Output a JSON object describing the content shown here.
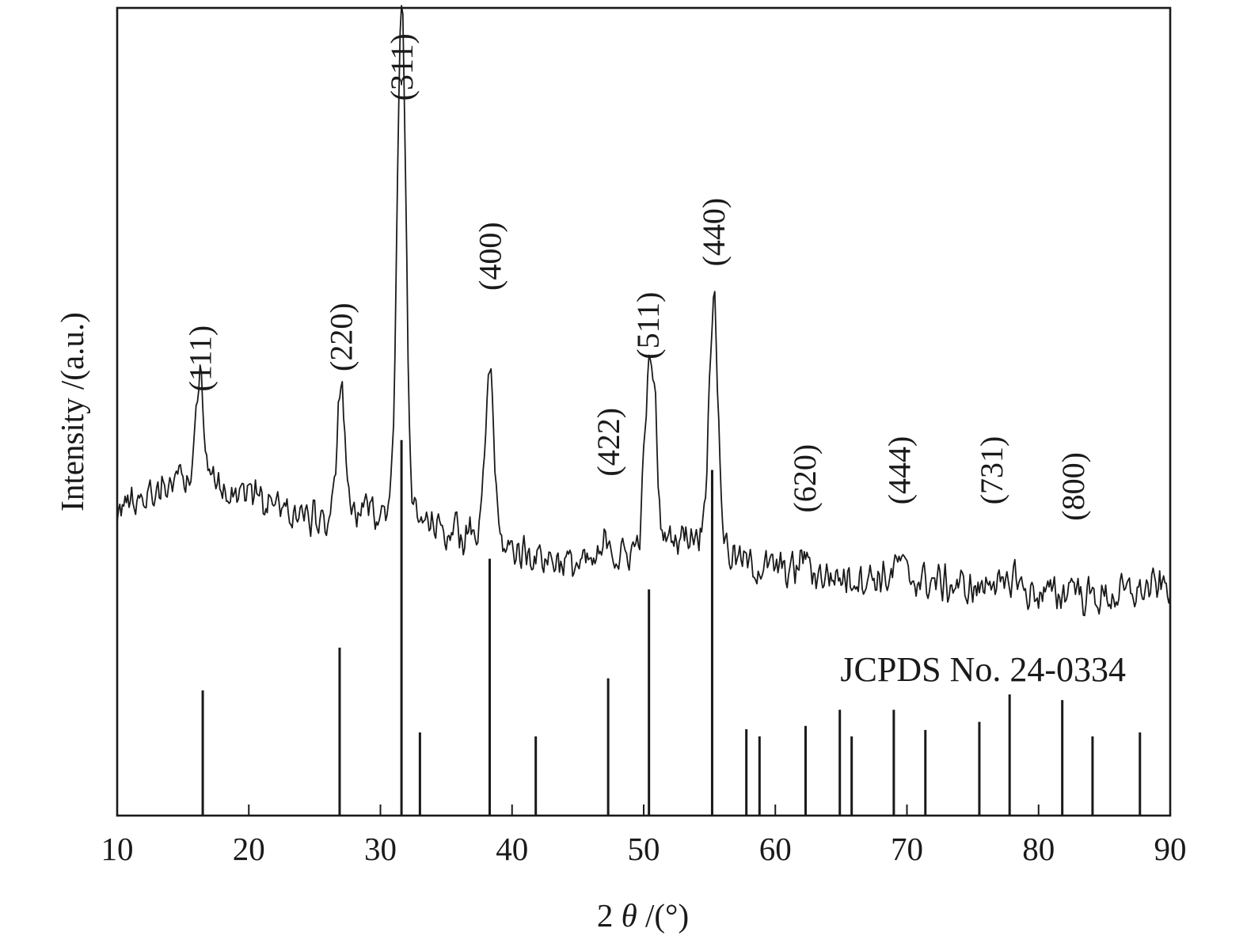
{
  "chart_data": {
    "type": "line",
    "xlabel": "2 θ /(°)",
    "xlabel_parts": {
      "pre": "2 ",
      "theta": "θ",
      "post": " /(°)"
    },
    "ylabel": "Intensity /(a.u.)",
    "xlim": [
      10,
      90
    ],
    "ylim": [
      0,
      100
    ],
    "grid": false,
    "yticks_visible": false,
    "x_ticks": [
      10,
      20,
      30,
      40,
      50,
      60,
      70,
      80,
      90
    ],
    "x_ticklabels": [
      "10",
      "20",
      "30",
      "40",
      "50",
      "60",
      "70",
      "80",
      "90"
    ],
    "reference_label": "JCPDS No. 24-0334",
    "pattern_peaks": [
      {
        "x": 16.3,
        "y": 14.2,
        "w": 0.28
      },
      {
        "x": 27.0,
        "y": 15.3,
        "w": 0.3
      },
      {
        "x": 31.6,
        "y": 65.0,
        "w": 0.32
      },
      {
        "x": 38.3,
        "y": 21.8,
        "w": 0.32
      },
      {
        "x": 47.3,
        "y": 3.5,
        "w": 0.3
      },
      {
        "x": 50.3,
        "y": 17.5,
        "w": 0.28
      },
      {
        "x": 50.8,
        "y": 15.5,
        "w": 0.25
      },
      {
        "x": 55.3,
        "y": 30.0,
        "w": 0.35
      },
      {
        "x": 62.2,
        "y": 2.2,
        "w": 0.3
      },
      {
        "x": 69.4,
        "y": 2.0,
        "w": 0.3
      },
      {
        "x": 76.4,
        "y": 2.0,
        "w": 0.3
      },
      {
        "x": 78.2,
        "y": 2.4,
        "w": 0.3
      },
      {
        "x": 82.6,
        "y": 2.0,
        "w": 0.3
      }
    ],
    "pattern_baseline": [
      [
        10,
        38.0
      ],
      [
        15,
        42.0
      ],
      [
        20,
        40.0
      ],
      [
        25,
        36.5
      ],
      [
        30,
        38.0
      ],
      [
        35,
        35.5
      ],
      [
        40,
        33.0
      ],
      [
        45,
        31.0
      ],
      [
        48,
        31.5
      ],
      [
        50,
        34.0
      ],
      [
        54,
        35.0
      ],
      [
        58,
        31.0
      ],
      [
        65,
        29.5
      ],
      [
        70,
        29.5
      ],
      [
        75,
        28.0
      ],
      [
        80,
        27.5
      ],
      [
        85,
        27.0
      ],
      [
        90,
        28.5
      ]
    ],
    "noise_amplitude": 2.8,
    "series_step": 0.1,
    "peak_labels": [
      {
        "x": 16.3,
        "y": 52.5,
        "label": "(111)"
      },
      {
        "x": 27.0,
        "y": 55.0,
        "label": "(220)"
      },
      {
        "x": 31.6,
        "y": 88.5,
        "label": "(311)"
      },
      {
        "x": 38.3,
        "y": 65.0,
        "label": "(400)"
      },
      {
        "x": 47.3,
        "y": 42.0,
        "label": "(422)"
      },
      {
        "x": 50.3,
        "y": 56.5,
        "label": "(511)"
      },
      {
        "x": 55.3,
        "y": 68.0,
        "label": "(440)"
      },
      {
        "x": 62.2,
        "y": 37.5,
        "label": "(620)"
      },
      {
        "x": 69.4,
        "y": 38.5,
        "label": "(444)"
      },
      {
        "x": 76.4,
        "y": 38.5,
        "label": "(731)"
      },
      {
        "x": 82.6,
        "y": 36.5,
        "label": "(800)"
      }
    ],
    "reference_lines": [
      {
        "x": 16.5,
        "height": 15.5
      },
      {
        "x": 26.9,
        "height": 20.8
      },
      {
        "x": 31.6,
        "height": 46.5
      },
      {
        "x": 33.0,
        "height": 10.3
      },
      {
        "x": 38.3,
        "height": 31.8
      },
      {
        "x": 41.8,
        "height": 9.8
      },
      {
        "x": 47.3,
        "height": 17.0
      },
      {
        "x": 50.4,
        "height": 28.0
      },
      {
        "x": 55.2,
        "height": 42.8
      },
      {
        "x": 57.8,
        "height": 10.7
      },
      {
        "x": 58.8,
        "height": 9.8
      },
      {
        "x": 62.3,
        "height": 11.1
      },
      {
        "x": 64.9,
        "height": 13.1
      },
      {
        "x": 65.8,
        "height": 9.8
      },
      {
        "x": 69.0,
        "height": 13.1
      },
      {
        "x": 71.4,
        "height": 10.6
      },
      {
        "x": 75.5,
        "height": 11.6
      },
      {
        "x": 77.8,
        "height": 15.0
      },
      {
        "x": 81.8,
        "height": 14.3
      },
      {
        "x": 84.1,
        "height": 9.8
      },
      {
        "x": 87.7,
        "height": 10.3
      }
    ]
  }
}
